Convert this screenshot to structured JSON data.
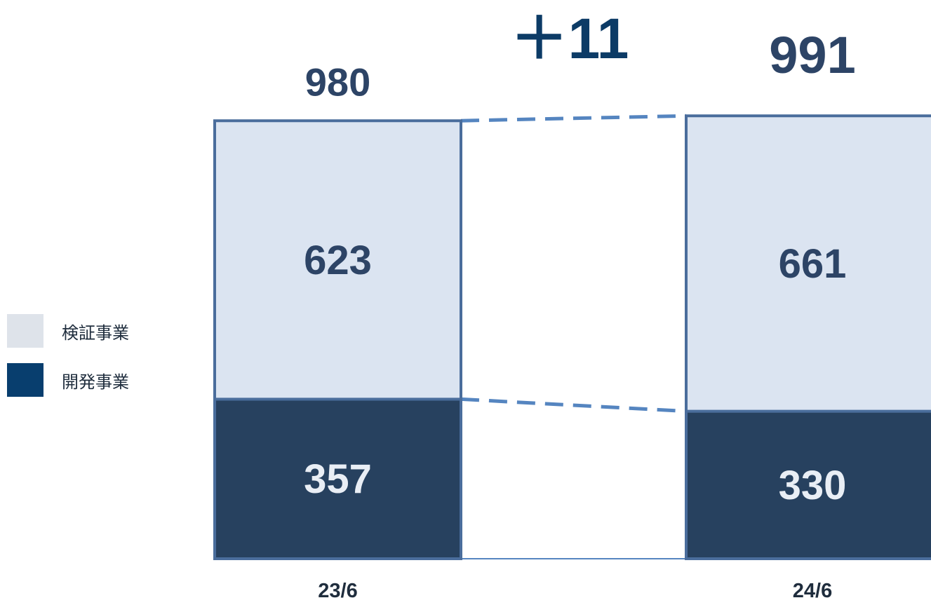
{
  "chart_data": {
    "type": "bar",
    "stacked": true,
    "categories": [
      "23/6",
      "24/6"
    ],
    "series": [
      {
        "name": "開発事業",
        "values": [
          357,
          330
        ],
        "color": "#27415f"
      },
      {
        "name": "検証事業",
        "values": [
          623,
          661
        ],
        "color": "#dbe4f1"
      }
    ],
    "totals": [
      980,
      991
    ],
    "annotation": "＋11",
    "legend_position": "left"
  },
  "legend": [
    {
      "label": "検証事業",
      "color": "#dee3ea"
    },
    {
      "label": "開発事業",
      "color": "#083e6e"
    }
  ],
  "colors": {
    "bar_border": "#4a6d9c",
    "connector": "#5585c0",
    "total_text": "#2d4466",
    "annotation_text": "#0c3b66",
    "light_segment_text": "#2d4466",
    "dark_segment_text": "#e9eef5",
    "category_text": "#1f2d3d"
  }
}
